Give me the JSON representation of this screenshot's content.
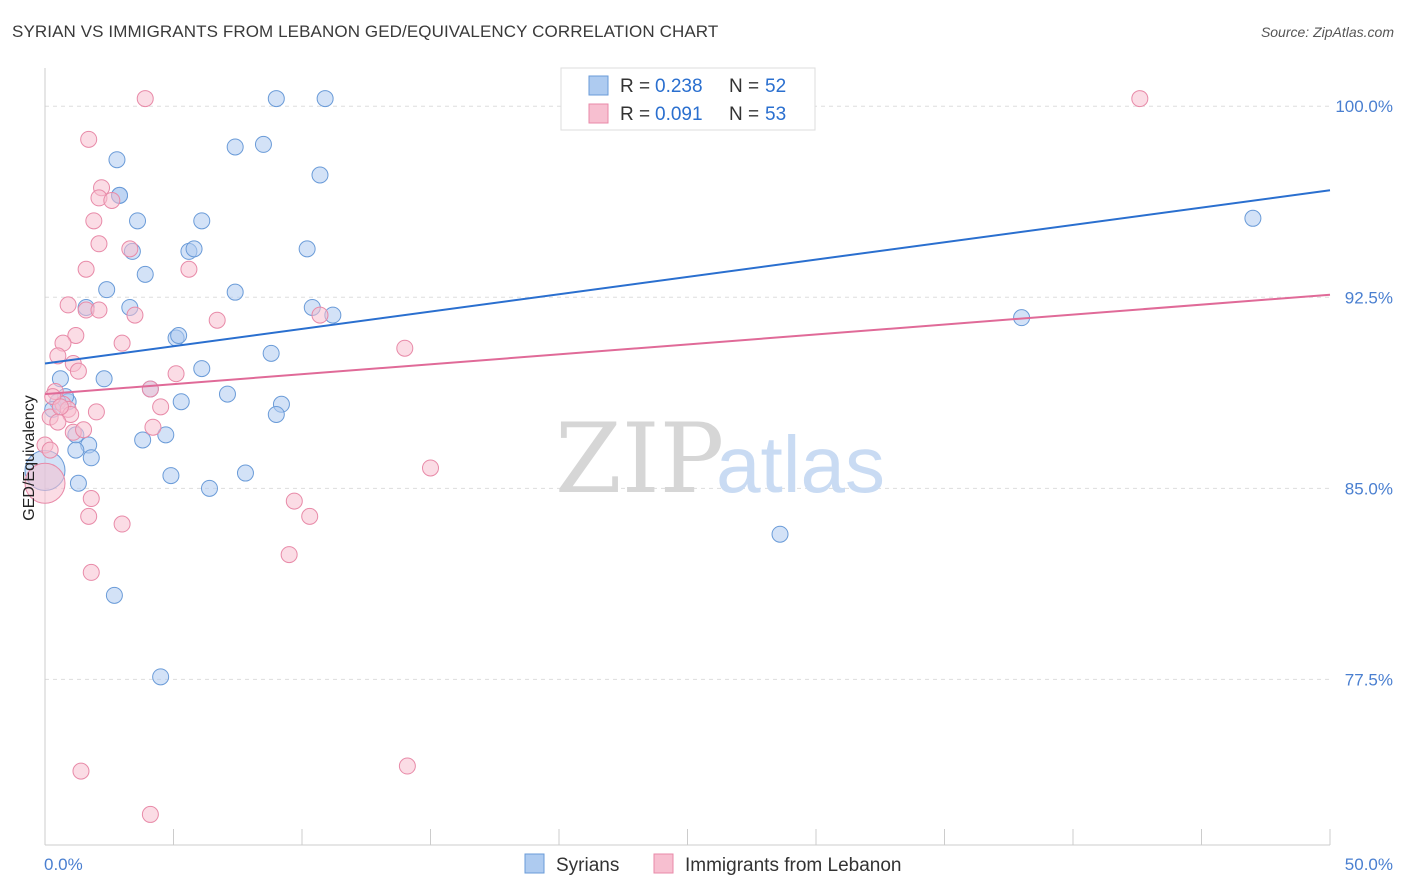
{
  "header": {
    "title": "SYRIAN VS IMMIGRANTS FROM LEBANON GED/EQUIVALENCY CORRELATION CHART",
    "source": "Source: ZipAtlas.com"
  },
  "watermark": {
    "zip": "ZIP",
    "atlas": "atlas"
  },
  "colors": {
    "syrians_fill": "#aecbf0",
    "syrians_stroke": "#6a9bd8",
    "syrians_line": "#2a6fcf",
    "lebanon_fill": "#f7bfd0",
    "lebanon_stroke": "#e88aa8",
    "lebanon_line": "#e06a98",
    "tick_text": "#4a7fd0",
    "grid": "#dddddd"
  },
  "stats_legend": [
    {
      "r_label": "R = ",
      "r_value": "0.238",
      "n_label": "N = ",
      "n_value": "52"
    },
    {
      "r_label": "R = ",
      "r_value": "0.091",
      "n_label": "N = ",
      "n_value": "53"
    }
  ],
  "chart_data": {
    "type": "scatter",
    "title": "SYRIAN VS IMMIGRANTS FROM LEBANON GED/EQUIVALENCY CORRELATION CHART",
    "xlabel": "",
    "ylabel": "GED/Equivalency",
    "xlim": [
      0,
      50
    ],
    "ylim": [
      71,
      101.5
    ],
    "x_tick_labels": [
      "0.0%",
      "50.0%"
    ],
    "y_ticks": [
      77.5,
      85.0,
      92.5,
      100.0
    ],
    "y_tick_labels": [
      "77.5%",
      "85.0%",
      "92.5%",
      "100.0%"
    ],
    "grid": true,
    "legend_position": "bottom",
    "series": [
      {
        "name": "Syrians",
        "trend": {
          "x": [
            0,
            50
          ],
          "y": [
            89.9,
            96.7
          ]
        },
        "points": [
          [
            9.0,
            100.3
          ],
          [
            10.9,
            100.3
          ],
          [
            2.8,
            97.9
          ],
          [
            7.4,
            98.4
          ],
          [
            8.5,
            98.5
          ],
          [
            10.7,
            97.3
          ],
          [
            2.9,
            96.5
          ],
          [
            3.6,
            95.5
          ],
          [
            6.1,
            95.5
          ],
          [
            3.4,
            94.3
          ],
          [
            5.6,
            94.3
          ],
          [
            5.8,
            94.4
          ],
          [
            10.2,
            94.4
          ],
          [
            3.9,
            93.4
          ],
          [
            2.4,
            92.8
          ],
          [
            7.4,
            92.7
          ],
          [
            1.6,
            92.1
          ],
          [
            3.3,
            92.1
          ],
          [
            10.4,
            92.1
          ],
          [
            11.2,
            91.8
          ],
          [
            5.1,
            90.9
          ],
          [
            5.2,
            91.0
          ],
          [
            8.8,
            90.3
          ],
          [
            6.1,
            89.7
          ],
          [
            2.3,
            89.3
          ],
          [
            0.6,
            89.3
          ],
          [
            4.1,
            88.9
          ],
          [
            0.9,
            88.4
          ],
          [
            0.8,
            88.6
          ],
          [
            5.3,
            88.4
          ],
          [
            7.1,
            88.7
          ],
          [
            9.2,
            88.3
          ],
          [
            9.0,
            87.9
          ],
          [
            1.2,
            87.1
          ],
          [
            4.7,
            87.1
          ],
          [
            1.7,
            86.7
          ],
          [
            3.8,
            86.9
          ],
          [
            1.8,
            86.2
          ],
          [
            0.0,
            85.7
          ],
          [
            1.3,
            85.2
          ],
          [
            4.9,
            85.5
          ],
          [
            6.4,
            85.0
          ],
          [
            7.8,
            85.6
          ],
          [
            2.7,
            80.8
          ],
          [
            4.5,
            77.6
          ],
          [
            28.6,
            83.2
          ],
          [
            38.0,
            91.7
          ],
          [
            47.0,
            95.6
          ],
          [
            0.5,
            88.4
          ],
          [
            1.2,
            86.5
          ],
          [
            2.9,
            96.5
          ],
          [
            0.3,
            88.1
          ]
        ]
      },
      {
        "name": "Immigrants from Lebanon",
        "trend": {
          "x": [
            0,
            50
          ],
          "y": [
            88.7,
            92.6
          ]
        },
        "points": [
          [
            3.9,
            100.3
          ],
          [
            42.6,
            100.3
          ],
          [
            1.7,
            98.7
          ],
          [
            2.2,
            96.8
          ],
          [
            2.1,
            96.4
          ],
          [
            2.6,
            96.3
          ],
          [
            1.9,
            95.5
          ],
          [
            2.1,
            94.6
          ],
          [
            3.3,
            94.4
          ],
          [
            1.6,
            93.6
          ],
          [
            5.6,
            93.6
          ],
          [
            0.9,
            92.2
          ],
          [
            1.6,
            92.0
          ],
          [
            2.1,
            92.0
          ],
          [
            3.5,
            91.8
          ],
          [
            6.7,
            91.6
          ],
          [
            10.7,
            91.8
          ],
          [
            1.2,
            91.0
          ],
          [
            0.7,
            90.7
          ],
          [
            3.0,
            90.7
          ],
          [
            14.0,
            90.5
          ],
          [
            0.5,
            90.2
          ],
          [
            1.1,
            89.9
          ],
          [
            1.3,
            89.6
          ],
          [
            5.1,
            89.5
          ],
          [
            4.1,
            88.9
          ],
          [
            0.4,
            88.8
          ],
          [
            0.7,
            88.3
          ],
          [
            0.9,
            88.1
          ],
          [
            1.0,
            87.9
          ],
          [
            2.0,
            88.0
          ],
          [
            4.5,
            88.2
          ],
          [
            0.2,
            87.8
          ],
          [
            0.5,
            87.6
          ],
          [
            4.2,
            87.4
          ],
          [
            1.1,
            87.2
          ],
          [
            0.0,
            86.7
          ],
          [
            0.0,
            85.2
          ],
          [
            15.0,
            85.8
          ],
          [
            1.8,
            84.6
          ],
          [
            9.7,
            84.5
          ],
          [
            1.7,
            83.9
          ],
          [
            10.3,
            83.9
          ],
          [
            3.0,
            83.6
          ],
          [
            9.5,
            82.4
          ],
          [
            1.8,
            81.7
          ],
          [
            1.4,
            73.9
          ],
          [
            14.1,
            74.1
          ],
          [
            4.1,
            72.2
          ],
          [
            0.3,
            88.6
          ],
          [
            0.6,
            88.2
          ],
          [
            1.5,
            87.3
          ],
          [
            0.2,
            86.5
          ]
        ]
      }
    ]
  }
}
